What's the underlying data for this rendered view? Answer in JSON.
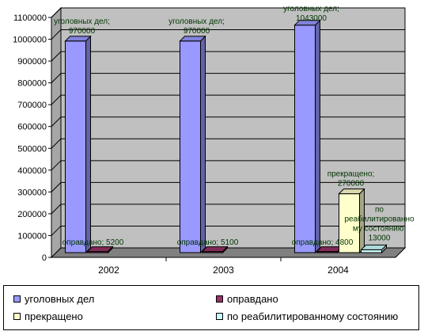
{
  "chart_data": {
    "type": "bar",
    "categories": [
      "2002",
      "2003",
      "2004"
    ],
    "series": [
      {
        "name": "уголовных дел",
        "values": [
          970000,
          970000,
          1043000
        ],
        "color": "#9999ff"
      },
      {
        "name": "оправдано",
        "values": [
          5200,
          5100,
          4800
        ],
        "color": "#993366"
      },
      {
        "name": "прекращено",
        "values": [
          null,
          null,
          270000
        ],
        "color": "#ffffcc"
      },
      {
        "name": "по реабилитированному состоянию",
        "values": [
          null,
          null,
          13000
        ],
        "color": "#ccffff"
      }
    ],
    "ylim": [
      0,
      1100000
    ],
    "yticks": [
      "0",
      "100000",
      "200000",
      "300000",
      "400000",
      "500000",
      "600000",
      "700000",
      "800000",
      "900000",
      "1000000",
      "1100000"
    ],
    "grid": true,
    "legend_position": "bottom",
    "data_labels": [
      {
        "category": "2002",
        "series": "уголовных дел",
        "lines": [
          "уголовных дел;",
          "970000"
        ]
      },
      {
        "category": "2002",
        "series": "оправдано",
        "lines": [
          "оправдано; 5200"
        ]
      },
      {
        "category": "2003",
        "series": "уголовных дел",
        "lines": [
          "уголовных дел;",
          "970000"
        ]
      },
      {
        "category": "2003",
        "series": "оправдано",
        "lines": [
          "оправдано; 5100"
        ]
      },
      {
        "category": "2004",
        "series": "уголовных дел",
        "lines": [
          "уголовных дел;",
          "1043000"
        ]
      },
      {
        "category": "2004",
        "series": "оправдано",
        "lines": [
          "оправдано; 4800"
        ]
      },
      {
        "category": "2004",
        "series": "прекращено",
        "lines": [
          "прекращено;",
          "270000"
        ]
      },
      {
        "category": "2004",
        "series": "по реабилитированному состоянию",
        "lines": [
          "по",
          "реабилитированно",
          "му состоянию;",
          "13000"
        ]
      }
    ]
  },
  "colors": {
    "plot_wall": "#c0c0c0",
    "floor": "#808080",
    "label_text": "#003300"
  }
}
